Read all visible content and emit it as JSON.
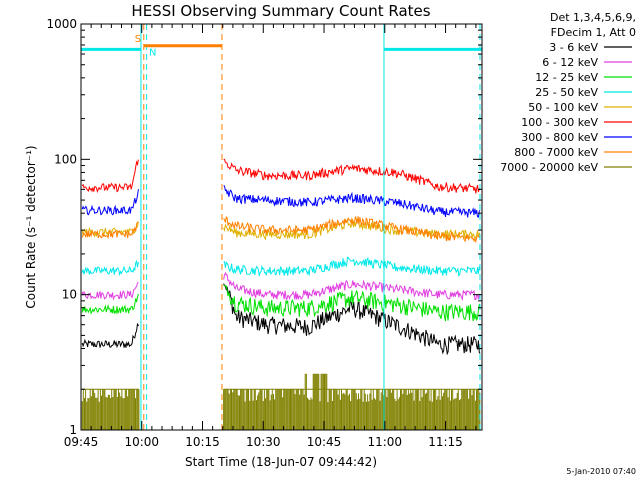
{
  "chart_data": {
    "type": "line",
    "title": "HESSI Observing Summary Count Rates",
    "xlabel": "Start Time (18-Jun-07 09:44:42)",
    "ylabel": "Count Rate (s⁻¹ detector⁻¹)",
    "x_ticks": [
      "09:45",
      "10:00",
      "10:15",
      "10:30",
      "10:45",
      "11:00",
      "11:15"
    ],
    "x_tick_minutes": [
      0,
      15,
      30,
      45,
      60,
      75,
      90
    ],
    "y_ticks": [
      "1",
      "10",
      "100",
      "1000"
    ],
    "y_scale": "log",
    "ylim": [
      1,
      1000
    ],
    "xlim_minutes": [
      0,
      99
    ],
    "legend_header": [
      "Det 1,3,4,5,6,9,",
      "FDecim 1, Att 0"
    ],
    "legend_position": "right",
    "footer_date": "5-Jan-2010 07:40",
    "series": [
      {
        "name": "3 - 6 keV",
        "color": "#000000",
        "pre": {
          "level": 4.3,
          "end": 6.5
        },
        "post": {
          "start": 12.5,
          "levels": [
            7.2,
            6.0,
            5.8,
            8.0,
            6.0,
            4.3,
            4.3
          ]
        }
      },
      {
        "name": "6 - 12 keV",
        "color": "#e040e0",
        "pre": {
          "level": 10.0,
          "end": 12.5
        },
        "post": {
          "start": 14.0,
          "levels": [
            11.5,
            10.0,
            10.0,
            12.0,
            11.0,
            10.0,
            10.0
          ]
        }
      },
      {
        "name": "12 - 25 keV",
        "color": "#00e000",
        "pre": {
          "level": 7.8,
          "end": 10.0
        },
        "post": {
          "start": 11.5,
          "levels": [
            9.0,
            8.0,
            8.0,
            9.5,
            8.5,
            7.5,
            7.5
          ]
        }
      },
      {
        "name": "25 - 50 keV",
        "color": "#00e8e8",
        "pre": {
          "level": 15.0,
          "end": 17.5
        },
        "post": {
          "start": 16.5,
          "levels": [
            15.5,
            15.0,
            15.0,
            18.0,
            16.0,
            15.0,
            15.0
          ]
        }
      },
      {
        "name": "50 - 100 keV",
        "color": "#e0b000",
        "pre": {
          "level": 29.0,
          "end": 34.0
        },
        "post": {
          "start": 32.0,
          "levels": [
            29.0,
            28.0,
            28.0,
            34.0,
            30.0,
            28.0,
            28.0
          ]
        }
      },
      {
        "name": "100 - 300 keV",
        "color": "#ff0000",
        "pre": {
          "level": 62.0,
          "end": 110.0
        },
        "post": {
          "start": 96.0,
          "levels": [
            86.0,
            76.0,
            76.0,
            86.0,
            80.0,
            63.0,
            60.0
          ]
        }
      },
      {
        "name": "300 - 800 keV",
        "color": "#0000ff",
        "pre": {
          "level": 42.0,
          "end": 58.0
        },
        "post": {
          "start": 60.0,
          "levels": [
            52.0,
            50.0,
            48.0,
            52.0,
            48.0,
            41.0,
            40.0
          ]
        }
      },
      {
        "name": "800 - 7000 keV",
        "color": "#ff8000",
        "pre": {
          "level": 28.0,
          "end": 34.0
        },
        "post": {
          "start": 36.0,
          "levels": [
            33.0,
            30.0,
            30.0,
            36.0,
            31.0,
            27.0,
            26.0
          ]
        }
      },
      {
        "name": "7000 - 20000 keV",
        "color": "#808000",
        "pre": {
          "level": 1.6,
          "end": 2.0
        },
        "post": {
          "start": 2.0,
          "levels": [
            1.6,
            1.6,
            1.6,
            2.6,
            1.6,
            1.6,
            1.6
          ]
        }
      }
    ],
    "annotations": [
      {
        "label": "S",
        "color": "#ff8000",
        "from_minute": 15.5,
        "to_minute": 34.8,
        "level": 690
      },
      {
        "label": "N",
        "color": "#00e8e8",
        "from_minute": 0,
        "to_minute": 14.8,
        "level": 650
      },
      {
        "label": "",
        "color": "#00e8e8",
        "from_minute": 74.8,
        "to_minute": 99,
        "level": 650
      }
    ],
    "vlines": [
      {
        "minute": 14.8,
        "color": "#00e8e8",
        "style": "solid"
      },
      {
        "minute": 16.2,
        "color": "#00e8e8",
        "style": "dashed"
      },
      {
        "minute": 15.5,
        "color": "#ff8000",
        "style": "dashed"
      },
      {
        "minute": 34.8,
        "color": "#ff8000",
        "style": "dashed"
      },
      {
        "minute": 74.8,
        "color": "#00e8e8",
        "style": "solid"
      },
      {
        "minute": 98.5,
        "color": "#00e8e8",
        "style": "dashed"
      }
    ]
  }
}
